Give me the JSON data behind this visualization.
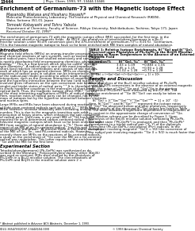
{
  "page_num": "13444",
  "journal_header": "J. Phys. Chem. 1993, 97, 13444-13446",
  "title": "Enrichment of Germanium-73 with the Magnetic Isotope Effect",
  "authors1": "Masanobu Wakasa and Hisaharu Hayashi*",
  "affil1a": "Molecular Photochemistry Laboratory, The Institute of Physical and Chemical Research (RIKEN),",
  "affil1b": "Wako, Saitama 351-01, Japan",
  "authors2": "Tomoaki Kobayashi and Tohru Yabuta",
  "affil2": "Department of Chemistry, Faculty of Science, Rikkyo University, Nishiikebukuro, Toshima, Tokyo 171, Japan",
  "received": "Received October 31, 1993*",
  "abstract_lines": [
    "The enrichment of germanium-73 with the magnetic isotope effect (MIE) succeeded, for the first time, in the",
    "presence and absence of magnetic fields.  At 300 K, the photolysis of tetrakis(phenyl)germane in a Bu₂O",
    "micellar solution under 90.4% conversion gives the 476-enrichment of germanium-73 (= 8.01%).  Germanium-",
    "73 is the heaviest magnetic isotope to have so far been enriched with MIE from samples of natural abundance."
  ],
  "intro_title": "Introduction",
  "intro_lines": [
    "Magnetic field effects (MFEs) on energy-transfer processes",
    "and chemical reactions of spin systems, such as excited molecules",
    "and radical pairs, have been studied extensively and sometimes",
    "is rapidly developing field encompassing chemistry, physics, and",
    "biology.¹⁻³ This is a new branch which may be called \"dynamic",
    "spin chemistry\". A radical pair is one of the most important",
    "short-lived reaction intermediates and consists of two radicals,",
    "each of which has an unpaired electron. MFEs on chemical",
    "reactions of radical pairs in solution can be interpreted in terms",
    "of the radical-pair model according to which weak magnetic",
    "interactions, such as the Zeeman interaction of unpaired electrons",
    "and the hyperfine interaction between the two I and nucleus spins,",
    "involved gives influences on the spin conversion rate between the",
    "singlet and triplet states of radical pairs.¹⁻³ It is, therefore, possible",
    "to clarify hyperfine couplings in the molecules of short-lived",
    "radical pairs. Thus, the magnetic isotope effect (MIE)¹⁻³ is one",
    "of the most interesting applications of MFEs of radical pairs.",
    "Here, reaction rates of radical pairs can be changed, not by the",
    "mass of isotopes but by the hyperfine interaction between electrons",
    "and nucleus spins.",
    "",
    "Large MFEs and MIEs have been observed during reactions",
    "of light-atom-centered radicals such as H and O.¹⁻³ MFEs and",
    "MIEs, however, increase drastically with increasing atomic",
    "number. This is due to the magnetic-transition spin-orbit",
    "interaction of heavy atoms, which enhances the spin conversion",
    "of radical pairs. Until now, a very small MIE of ⁶⁸Ge has been",
    "reported for an ill-determined carbon-centered radical.⁴ The",
    "heaviest magnetic isotopes which have so far been enriched with",
    "MIE from samples of natural abundance is ³³S.⁵ There was a",
    "report of an MIE of an Sn-centered radical,⁶ but this was",
    "subsequently withdrawn.⁷ At present there is, therefore, no report",
    "of the MIE of Ge-, Sn-, and Pb-centered radicals. However,",
    "recently there are MFEs on the reactions of Sn-centered radicals,⁸",
    "a study on the enrichment of ⁷⁰Ge over the MIE on a Ge-centered",
    "radical was undertaken. This Letter reports on the enrichment of",
    "⁷³Ge with the MIE for the first time."
  ],
  "expt_title": "Experimental Section",
  "expt_lines": [
    "Tetrakis(phenylgermane) (Ph₄GePh) was synthesized as de-",
    "scribed in the literature.⁹ Polyoxyethylene dodecyl ether (Brij35)",
    "was used as received. MIEs were studied by the photolysis of",
    "Ph₄GePh in a Bu₂O micellar solution. The concentrations of",
    "Ph₄GePh and Brij35 in the micellar solution were 2 ×"
  ],
  "footnote": "* Abstract published in Advance ACS Abstracts, December 1, 1993.",
  "table_title_lines": [
    "TABLE 1: Relative Isotope Enrichments, δ(⁷³Ge) and δ(⁷²Ge),",
    "Observed upon Photolysis of Ph₄GePh in the Brij35 Micellar",
    "Solution at Room Temperature in the Absence of an External",
    "Magnetic Field"
  ],
  "table_headers": [
    "conversion/%",
    "δ(⁷³Ge), ‰ᵃ",
    "δ(⁷²Ge), ‰ᵃ"
  ],
  "table_rows": [
    [
      "58",
      "3.03 ± 1.09",
      "−0.883 ± 1.06"
    ],
    [
      "66",
      "4.05 ± 1.15",
      "−0.90 ± 1.28"
    ],
    [
      "90",
      "−1.02 ± 1.28",
      "−0.73 ± 1.28"
    ]
  ],
  "table_footnote": "ᵃ δ(⁶⁸Ge) = (⁶⁸Ge/⁷⁴Ge)ˢᵃᵃ/(⁶⁸Ge/⁷⁴Ge)ˢᵗᵈᵐ − 1) × 10³.",
  "results_title": "Results and Discussion",
  "results_lines1": [
    "After photolysis of the Bu₂O micellar solution of Ph₄GePh",
    "under 58-90% conversions in the absence of an external magnetic",
    "field, the ratios of ⁷³Ge/⁷⁴Ge and ⁷²Ge/⁷⁴Ge in the starting",
    "compound (Ph₄GePh) were measured by the ICP-MS. The",
    "relative enrichment of ⁷³Ge (δ(⁷³Ge)) can easily be taken as",
    "follows:"
  ],
  "equation": "δ(⁷³Ge) = [(⁷³Ge/⁷⁴Ge)ˢᵃᵃ/(⁷³Ge/⁷⁴Ge)ˢᵗᵈᵐ − 1] × 10³   (1)",
  "results_lines2": [
    "Here, δ(⁷³Ge)ˢᵃᵃ and δ(⁷³Ge)ˢᵗᵈᵐ represent the isotope ratios",
    "of ⁷³Ge/⁷⁴Ge observed before and after photolysis, respectively.",
    "Typical results of the observed δ(⁷³Ge) values are listed in Table",
    "1. The table indicates a significant dependence of magnitudes of",
    "its content in the approximate change of conversion of ⁷³Ge."
  ],
  "results_lines3": [
    "The reaction scheme can be described by Figure 1. Upon",
    "photolysis of the Brij35 micellar solution containing Ph₄GePh,",
    "the triplet state (³Ph₄GePh*) is produced, and then ³Ph₄GePh*",
    "decomposes to a triplet radical pair (³X, Y) of the diphenyls",
    "germylene (Ph₂Ge:GePh₂) and phenyl (Ph•) radicals. In the",
    "radical pair involving magnetic ⁷³Ge (I = 9/2) the conversion of",
    "the radical pair involving magnetic ⁷³Ge (I = 9/2) is much faster than"
  ],
  "copyright": "© 1993 American Chemical Society",
  "doi": "0022-3654/93/2097-13444$04.00/0"
}
